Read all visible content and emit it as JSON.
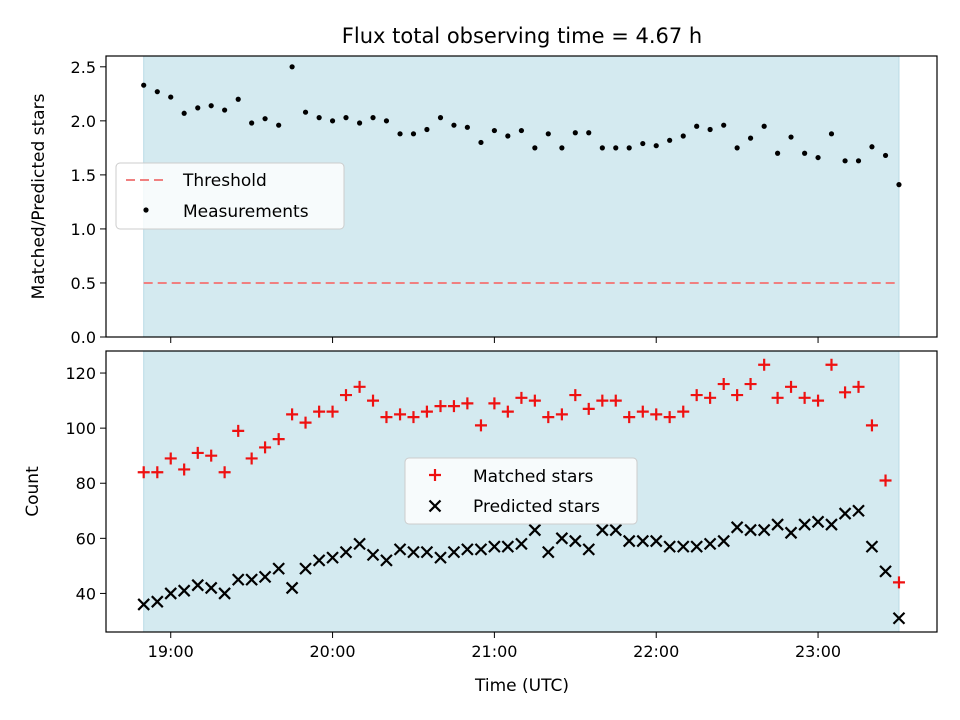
{
  "title": "Flux total observing time = 4.67 h",
  "xlabel": "Time (UTC)",
  "xticks": [
    "19:00",
    "20:00",
    "21:00",
    "22:00",
    "23:00"
  ],
  "colors": {
    "observing_window": "#d4eaf0",
    "threshold": "#f08080",
    "measurements": "#000000",
    "matched": "#ee1111",
    "predicted": "#000000"
  },
  "chart_data": [
    {
      "type": "scatter",
      "ylabel": "Matched/Predicted stars",
      "ylim": [
        0,
        2.6
      ],
      "yticks": [
        "0.0",
        "0.5",
        "1.0",
        "1.5",
        "2.0",
        "2.5"
      ],
      "observing_window_x": [
        18.833,
        23.5
      ],
      "legend": {
        "placement": "center-left",
        "threshold": "Threshold",
        "measurements": "Measurements"
      },
      "threshold_value": 0.5,
      "series": [
        {
          "name": "Measurements",
          "x": [
            18.833,
            18.917,
            19.0,
            19.083,
            19.167,
            19.25,
            19.333,
            19.417,
            19.5,
            19.583,
            19.667,
            19.75,
            19.833,
            19.917,
            20.0,
            20.083,
            20.167,
            20.25,
            20.333,
            20.417,
            20.5,
            20.583,
            20.667,
            20.75,
            20.833,
            20.917,
            21.0,
            21.083,
            21.167,
            21.25,
            21.333,
            21.417,
            21.5,
            21.583,
            21.667,
            21.75,
            21.833,
            21.917,
            22.0,
            22.083,
            22.167,
            22.25,
            22.333,
            22.417,
            22.5,
            22.583,
            22.667,
            22.75,
            22.833,
            22.917,
            23.0,
            23.083,
            23.167,
            23.25,
            23.333,
            23.417,
            23.5
          ],
          "values": [
            2.33,
            2.27,
            2.22,
            2.07,
            2.12,
            2.14,
            2.1,
            2.2,
            1.98,
            2.02,
            1.96,
            2.5,
            2.08,
            2.03,
            2.0,
            2.03,
            1.98,
            2.03,
            2.0,
            1.88,
            1.88,
            1.92,
            2.03,
            1.96,
            1.94,
            1.8,
            1.91,
            1.86,
            1.91,
            1.75,
            1.88,
            1.75,
            1.89,
            1.89,
            1.75,
            1.75,
            1.75,
            1.79,
            1.77,
            1.82,
            1.86,
            1.95,
            1.92,
            1.96,
            1.75,
            1.84,
            1.95,
            1.7,
            1.85,
            1.7,
            1.66,
            1.88,
            1.63,
            1.63,
            1.76,
            1.68,
            1.41
          ]
        }
      ]
    },
    {
      "type": "scatter",
      "ylabel": "Count",
      "ylim": [
        26,
        128
      ],
      "yticks": [
        "40",
        "60",
        "80",
        "100",
        "120"
      ],
      "observing_window_x": [
        18.833,
        23.5
      ],
      "legend": {
        "placement": "center",
        "matched": "Matched stars",
        "predicted": "Predicted stars"
      },
      "x": [
        18.833,
        18.917,
        19.0,
        19.083,
        19.167,
        19.25,
        19.333,
        19.417,
        19.5,
        19.583,
        19.667,
        19.75,
        19.833,
        19.917,
        20.0,
        20.083,
        20.167,
        20.25,
        20.333,
        20.417,
        20.5,
        20.583,
        20.667,
        20.75,
        20.833,
        20.917,
        21.0,
        21.083,
        21.167,
        21.25,
        21.333,
        21.417,
        21.5,
        21.583,
        21.667,
        21.75,
        21.833,
        21.917,
        22.0,
        22.083,
        22.167,
        22.25,
        22.333,
        22.417,
        22.5,
        22.583,
        22.667,
        22.75,
        22.833,
        22.917,
        23.0,
        23.083,
        23.167,
        23.25,
        23.333,
        23.417,
        23.5
      ],
      "series": [
        {
          "name": "Matched stars",
          "values": [
            84,
            84,
            89,
            85,
            91,
            90,
            84,
            99,
            89,
            93,
            96,
            105,
            102,
            106,
            106,
            112,
            115,
            110,
            104,
            105,
            104,
            106,
            108,
            108,
            109,
            101,
            109,
            106,
            111,
            110,
            104,
            105,
            112,
            107,
            110,
            110,
            104,
            106,
            105,
            104,
            106,
            112,
            111,
            116,
            112,
            116,
            123,
            111,
            115,
            111,
            110,
            123,
            113,
            115,
            101,
            81,
            44
          ]
        },
        {
          "name": "Predicted stars",
          "values": [
            36,
            37,
            40,
            41,
            43,
            42,
            40,
            45,
            45,
            46,
            49,
            42,
            49,
            52,
            53,
            55,
            58,
            54,
            52,
            56,
            55,
            55,
            53,
            55,
            56,
            56,
            57,
            57,
            58,
            63,
            55,
            60,
            59,
            56,
            63,
            63,
            59,
            59,
            59,
            57,
            57,
            57,
            58,
            59,
            64,
            63,
            63,
            65,
            62,
            65,
            66,
            65,
            69,
            70,
            57,
            48,
            31
          ]
        }
      ]
    }
  ]
}
